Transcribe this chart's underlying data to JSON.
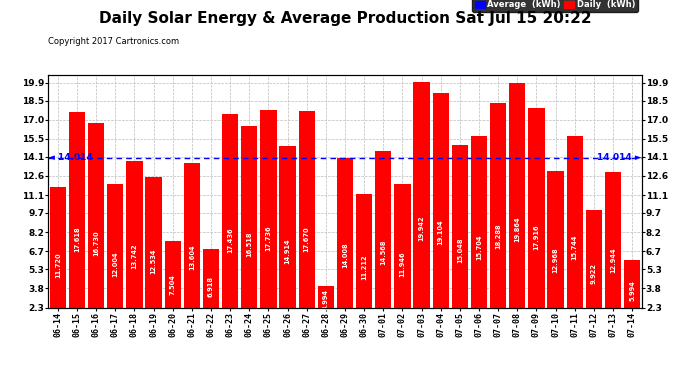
{
  "title": "Daily Solar Energy & Average Production Sat Jul 15 20:22",
  "copyright": "Copyright 2017 Cartronics.com",
  "categories": [
    "06-14",
    "06-15",
    "06-16",
    "06-17",
    "06-18",
    "06-19",
    "06-20",
    "06-21",
    "06-22",
    "06-23",
    "06-24",
    "06-25",
    "06-26",
    "06-27",
    "06-28",
    "06-29",
    "06-30",
    "07-01",
    "07-02",
    "07-03",
    "07-04",
    "07-05",
    "07-06",
    "07-07",
    "07-08",
    "07-09",
    "07-10",
    "07-11",
    "07-12",
    "07-13",
    "07-14"
  ],
  "values": [
    11.72,
    17.618,
    16.73,
    12.004,
    13.742,
    12.534,
    7.504,
    13.604,
    6.918,
    17.436,
    16.518,
    17.736,
    14.914,
    17.67,
    3.994,
    14.008,
    11.212,
    14.568,
    11.946,
    19.942,
    19.104,
    15.048,
    15.704,
    18.288,
    19.864,
    17.916,
    12.968,
    15.744,
    9.922,
    12.944,
    5.994
  ],
  "average": 14.014,
  "bar_color": "#FF0000",
  "average_line_color": "#0000FF",
  "yticks": [
    2.3,
    3.8,
    5.3,
    6.7,
    8.2,
    9.7,
    11.1,
    12.6,
    14.1,
    15.5,
    17.0,
    18.5,
    19.9
  ],
  "ymin": 2.3,
  "ymax": 20.5,
  "background_color": "#FFFFFF",
  "grid_color": "#BBBBBB",
  "title_fontsize": 11,
  "bar_text_color": "#FFFFFF",
  "legend_avg_color": "#0000FF",
  "legend_daily_color": "#FF0000",
  "avg_label": "14.014",
  "figwidth": 6.9,
  "figheight": 3.75,
  "dpi": 100
}
